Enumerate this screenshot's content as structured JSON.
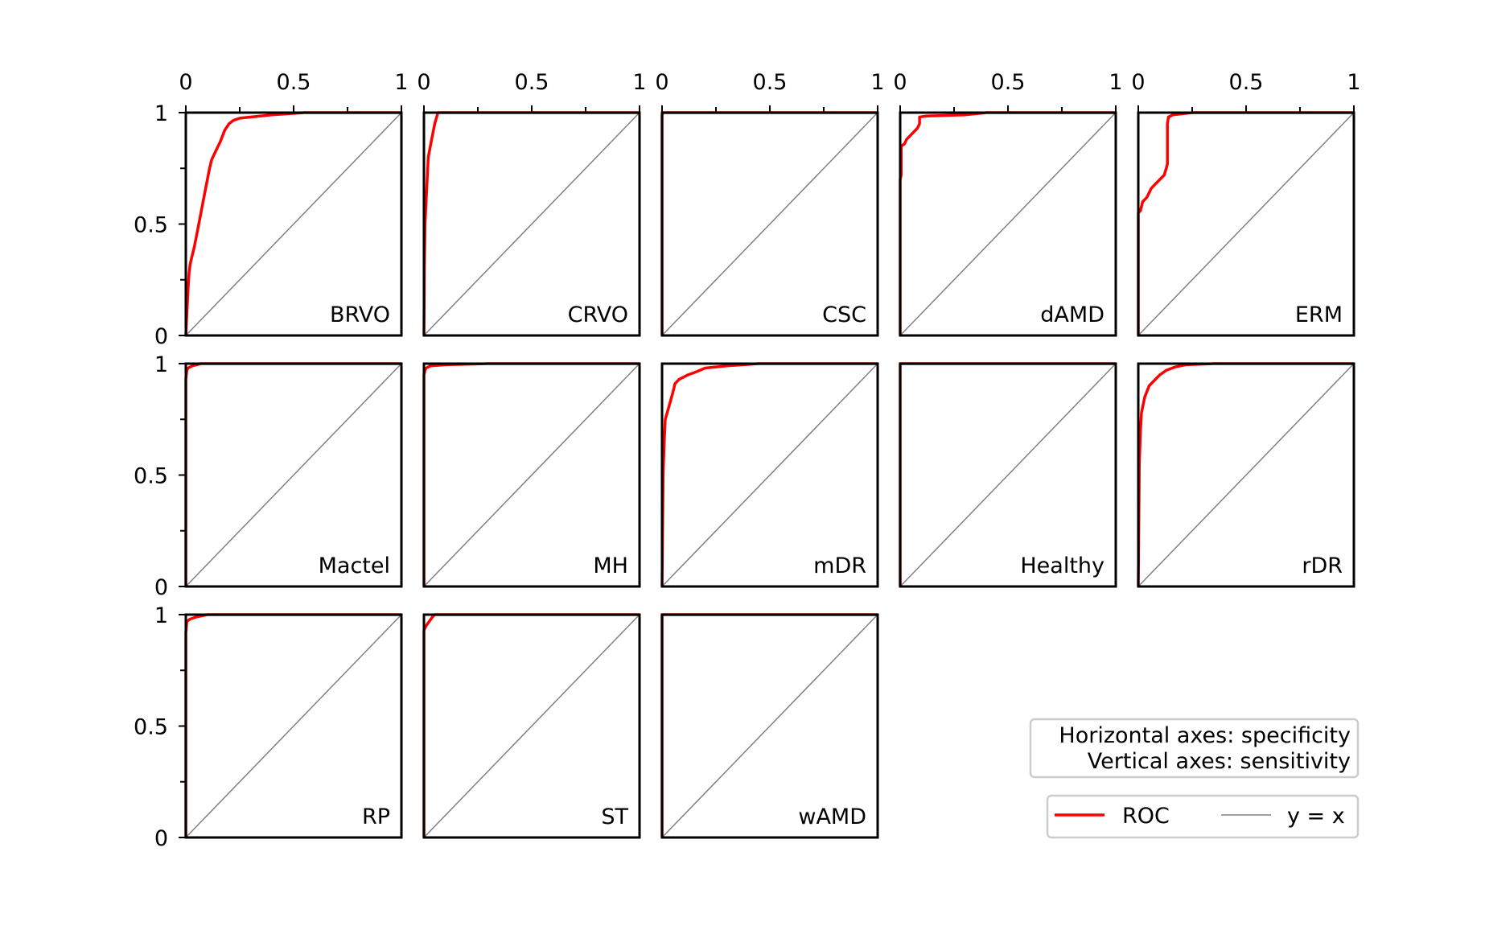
{
  "chart_data": {
    "type": "line",
    "panels": [
      {
        "label": "BRVO",
        "roc": [
          [
            0,
            0
          ],
          [
            0.005,
            0.1
          ],
          [
            0.01,
            0.2
          ],
          [
            0.015,
            0.28
          ],
          [
            0.02,
            0.32
          ],
          [
            0.03,
            0.36
          ],
          [
            0.04,
            0.4
          ],
          [
            0.05,
            0.45
          ],
          [
            0.06,
            0.5
          ],
          [
            0.07,
            0.55
          ],
          [
            0.08,
            0.6
          ],
          [
            0.09,
            0.65
          ],
          [
            0.1,
            0.7
          ],
          [
            0.11,
            0.75
          ],
          [
            0.12,
            0.79
          ],
          [
            0.14,
            0.83
          ],
          [
            0.16,
            0.87
          ],
          [
            0.18,
            0.92
          ],
          [
            0.2,
            0.95
          ],
          [
            0.22,
            0.965
          ],
          [
            0.25,
            0.975
          ],
          [
            0.3,
            0.98
          ],
          [
            0.4,
            0.99
          ],
          [
            0.55,
            1
          ],
          [
            1,
            1
          ]
        ]
      },
      {
        "label": "CRVO",
        "roc": [
          [
            0,
            0
          ],
          [
            0.002,
            0.3
          ],
          [
            0.005,
            0.5
          ],
          [
            0.01,
            0.6
          ],
          [
            0.015,
            0.7
          ],
          [
            0.02,
            0.8
          ],
          [
            0.03,
            0.85
          ],
          [
            0.04,
            0.9
          ],
          [
            0.05,
            0.95
          ],
          [
            0.065,
            1
          ],
          [
            1,
            1
          ]
        ]
      },
      {
        "label": "CSC",
        "roc": [
          [
            0,
            0
          ],
          [
            0,
            0.99
          ],
          [
            0.005,
            1
          ],
          [
            0.1,
            1
          ],
          [
            1,
            1
          ]
        ]
      },
      {
        "label": "dAMD",
        "roc": [
          [
            0,
            0
          ],
          [
            0,
            0.7
          ],
          [
            0.005,
            0.72
          ],
          [
            0.005,
            0.85
          ],
          [
            0.02,
            0.86
          ],
          [
            0.03,
            0.88
          ],
          [
            0.05,
            0.9
          ],
          [
            0.08,
            0.93
          ],
          [
            0.09,
            0.95
          ],
          [
            0.09,
            0.98
          ],
          [
            0.12,
            0.985
          ],
          [
            0.3,
            0.99
          ],
          [
            0.4,
            1
          ],
          [
            1,
            1
          ]
        ]
      },
      {
        "label": "ERM",
        "roc": [
          [
            0,
            0
          ],
          [
            0,
            0.55
          ],
          [
            0.01,
            0.56
          ],
          [
            0.02,
            0.6
          ],
          [
            0.04,
            0.62
          ],
          [
            0.05,
            0.64
          ],
          [
            0.06,
            0.66
          ],
          [
            0.08,
            0.68
          ],
          [
            0.1,
            0.7
          ],
          [
            0.12,
            0.72
          ],
          [
            0.13,
            0.75
          ],
          [
            0.135,
            0.77
          ],
          [
            0.135,
            0.95
          ],
          [
            0.14,
            0.98
          ],
          [
            0.16,
            0.99
          ],
          [
            0.25,
            1
          ],
          [
            1,
            1
          ]
        ]
      },
      {
        "label": "Mactel",
        "roc": [
          [
            0,
            0
          ],
          [
            0,
            0.93
          ],
          [
            0.005,
            0.97
          ],
          [
            0.01,
            0.98
          ],
          [
            0.03,
            0.99
          ],
          [
            0.07,
            1
          ],
          [
            1,
            1
          ]
        ]
      },
      {
        "label": "MH",
        "roc": [
          [
            0,
            0
          ],
          [
            0,
            0.95
          ],
          [
            0.005,
            0.97
          ],
          [
            0.01,
            0.98
          ],
          [
            0.03,
            0.99
          ],
          [
            0.1,
            0.995
          ],
          [
            0.3,
            1
          ],
          [
            1,
            1
          ]
        ]
      },
      {
        "label": "mDR",
        "roc": [
          [
            0,
            0
          ],
          [
            0.005,
            0.5
          ],
          [
            0.01,
            0.65
          ],
          [
            0.015,
            0.75
          ],
          [
            0.03,
            0.8
          ],
          [
            0.05,
            0.87
          ],
          [
            0.06,
            0.91
          ],
          [
            0.08,
            0.93
          ],
          [
            0.12,
            0.95
          ],
          [
            0.15,
            0.96
          ],
          [
            0.2,
            0.98
          ],
          [
            0.3,
            0.99
          ],
          [
            0.45,
            1
          ],
          [
            1,
            1
          ]
        ]
      },
      {
        "label": "Healthy",
        "roc": [
          [
            0,
            0
          ],
          [
            0,
            1
          ],
          [
            1,
            1
          ]
        ]
      },
      {
        "label": "rDR",
        "roc": [
          [
            0,
            0
          ],
          [
            0.005,
            0.55
          ],
          [
            0.01,
            0.7
          ],
          [
            0.015,
            0.78
          ],
          [
            0.03,
            0.85
          ],
          [
            0.05,
            0.9
          ],
          [
            0.08,
            0.93
          ],
          [
            0.1,
            0.95
          ],
          [
            0.13,
            0.97
          ],
          [
            0.17,
            0.985
          ],
          [
            0.22,
            0.995
          ],
          [
            0.35,
            1
          ],
          [
            1,
            1
          ]
        ]
      },
      {
        "label": "RP",
        "roc": [
          [
            0,
            0
          ],
          [
            0,
            0.92
          ],
          [
            0.005,
            0.97
          ],
          [
            0.02,
            0.98
          ],
          [
            0.05,
            0.99
          ],
          [
            0.1,
            1
          ],
          [
            1,
            1
          ]
        ]
      },
      {
        "label": "ST",
        "roc": [
          [
            0,
            0
          ],
          [
            0,
            0.93
          ],
          [
            0.01,
            0.95
          ],
          [
            0.025,
            0.97
          ],
          [
            0.04,
            0.99
          ],
          [
            0.05,
            1
          ],
          [
            1,
            1
          ]
        ]
      },
      {
        "label": "wAMD",
        "roc": [
          [
            0,
            0
          ],
          [
            0,
            1
          ],
          [
            1,
            1
          ]
        ]
      }
    ],
    "xlim": [
      0,
      1
    ],
    "ylim": [
      0,
      1
    ],
    "xticks": [
      "0",
      "0.5",
      "1"
    ],
    "yticks": [
      "0",
      "0.5",
      "1"
    ],
    "note_lines": [
      "Horizontal axes: specificity",
      "Vertical axes: sensitivity"
    ],
    "legend": [
      {
        "name": "ROC",
        "color": "#ff0000"
      },
      {
        "name": "y = x",
        "color": "#808080"
      }
    ],
    "grid": false
  }
}
